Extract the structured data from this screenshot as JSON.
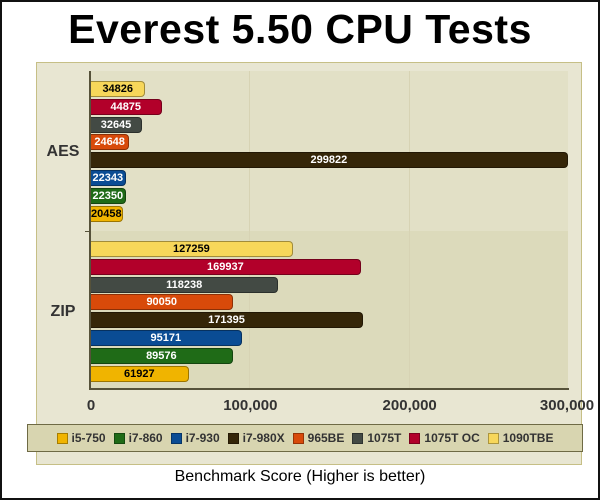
{
  "chart_data": {
    "type": "bar",
    "orientation": "horizontal",
    "title": "Everest 5.50 CPU Tests",
    "xlabel": "Benchmark Score (Higher is better)",
    "ylabel": "",
    "xlim": [
      0,
      300000
    ],
    "x_ticks": [
      "0",
      "100,000",
      "200,000",
      "300,000"
    ],
    "categories": [
      "AES",
      "ZIP"
    ],
    "legend_position": "bottom",
    "grid": true,
    "series": [
      {
        "name": "i5-750",
        "color": "#f0b400",
        "text_color": "#000000",
        "values": [
          20458,
          61927
        ]
      },
      {
        "name": "i7-860",
        "color": "#1f6b17",
        "text_color": "#ffffff",
        "values": [
          22350,
          89576
        ]
      },
      {
        "name": "i7-930",
        "color": "#0a4c94",
        "text_color": "#ffffff",
        "values": [
          22343,
          95171
        ]
      },
      {
        "name": "i7-980X",
        "color": "#352608",
        "text_color": "#ffffff",
        "values": [
          299822,
          171395
        ]
      },
      {
        "name": "965BE",
        "color": "#d84a0a",
        "text_color": "#ffffff",
        "values": [
          24648,
          90050
        ]
      },
      {
        "name": "1075T",
        "color": "#434a44",
        "text_color": "#ffffff",
        "values": [
          32645,
          118238
        ]
      },
      {
        "name": "1075T OC",
        "color": "#b2002a",
        "text_color": "#ffffff",
        "values": [
          44875,
          169937
        ]
      },
      {
        "name": "1090TBE",
        "color": "#f7d75a",
        "text_color": "#000000",
        "values": [
          34826,
          127259
        ]
      }
    ]
  }
}
